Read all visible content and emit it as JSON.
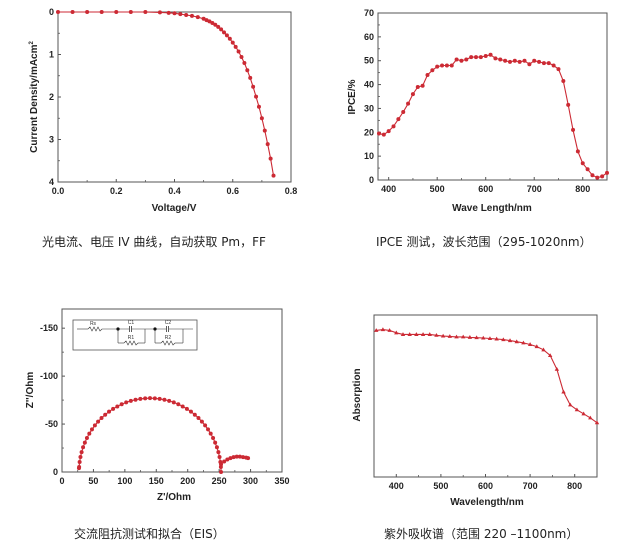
{
  "colors": {
    "series": "#cc2a34",
    "axis": "#555555",
    "text": "#222222"
  },
  "captions": [
    "光电流、电压 IV 曲线，自动获取 Pm，FF",
    "IPCE 测试，波长范围（295-1020nm）",
    "交流阻抗测试和拟合（EIS）",
    "紫外吸收谱（范围 220 –1100nm）"
  ],
  "chart_data": [
    {
      "type": "line",
      "id": "iv",
      "xlabel": "Voltage/V",
      "ylabel": "Current Density/mAcm",
      "ylabel_sup": "2",
      "xlim": [
        0,
        0.8
      ],
      "ylim": [
        0,
        4
      ],
      "y_inverted": true,
      "xticks": [
        "0.0",
        "0.2",
        "0.4",
        "0.6",
        "0.8"
      ],
      "xtick_values": [
        0,
        0.2,
        0.4,
        0.6,
        0.8
      ],
      "yticks": [
        "0",
        "1",
        "2",
        "3",
        "4"
      ],
      "ytick_values": [
        0,
        1,
        2,
        3,
        4
      ],
      "x": [
        0.0,
        0.05,
        0.1,
        0.15,
        0.2,
        0.25,
        0.3,
        0.35,
        0.38,
        0.4,
        0.42,
        0.44,
        0.46,
        0.48,
        0.5,
        0.51,
        0.52,
        0.53,
        0.54,
        0.55,
        0.56,
        0.57,
        0.58,
        0.59,
        0.6,
        0.61,
        0.62,
        0.63,
        0.64,
        0.65,
        0.66,
        0.67,
        0.68,
        0.69,
        0.7,
        0.71,
        0.72,
        0.73,
        0.74
      ],
      "y": [
        0.0,
        0.0,
        0.0,
        0.0,
        0.0,
        0.0,
        0.0,
        0.01,
        0.02,
        0.03,
        0.05,
        0.07,
        0.09,
        0.12,
        0.16,
        0.19,
        0.22,
        0.26,
        0.3,
        0.35,
        0.41,
        0.48,
        0.55,
        0.63,
        0.72,
        0.82,
        0.93,
        1.06,
        1.2,
        1.37,
        1.55,
        1.76,
        1.99,
        2.23,
        2.5,
        2.79,
        3.11,
        3.45,
        3.85
      ]
    },
    {
      "type": "line",
      "id": "ipce",
      "xlabel": "Wave Length/nm",
      "ylabel": "IPCE/%",
      "xlim": [
        378,
        850
      ],
      "ylim": [
        0,
        70
      ],
      "xticks": [
        "400",
        "500",
        "600",
        "700",
        "800"
      ],
      "xtick_values": [
        400,
        500,
        600,
        700,
        800
      ],
      "yticks": [
        "0",
        "10",
        "20",
        "30",
        "40",
        "50",
        "60",
        "70"
      ],
      "ytick_values": [
        0,
        10,
        20,
        30,
        40,
        50,
        60,
        70
      ],
      "x": [
        380,
        390,
        400,
        410,
        420,
        430,
        440,
        450,
        460,
        470,
        480,
        490,
        500,
        510,
        520,
        530,
        540,
        550,
        560,
        570,
        580,
        590,
        600,
        610,
        620,
        630,
        640,
        650,
        660,
        670,
        680,
        690,
        700,
        710,
        720,
        730,
        740,
        750,
        760,
        770,
        780,
        790,
        800,
        810,
        820,
        830,
        840,
        850
      ],
      "y": [
        19.5,
        19,
        20.5,
        22.5,
        25.5,
        28.5,
        32,
        36,
        39,
        39.5,
        44,
        46,
        47.5,
        48,
        48,
        48,
        50.5,
        50,
        50.5,
        51.5,
        51.5,
        51.5,
        52,
        52.5,
        51,
        50.5,
        50,
        49.5,
        50,
        49.5,
        50,
        48.5,
        50,
        49.5,
        49,
        49,
        48,
        46.5,
        41.5,
        31.5,
        21,
        12,
        7,
        4.5,
        2,
        1,
        1.5,
        3
      ]
    },
    {
      "type": "scatter",
      "id": "eis",
      "xlabel": "Z'/Ohm",
      "ylabel": "Z''/Ohm",
      "xlim": [
        0,
        350
      ],
      "ylim": [
        0,
        -170
      ],
      "xticks": [
        "0",
        "50",
        "100",
        "150",
        "200",
        "250",
        "300",
        "350"
      ],
      "xtick_values": [
        0,
        50,
        100,
        150,
        200,
        250,
        300,
        350
      ],
      "yticks": [
        "0",
        "-50",
        "-100",
        "-150"
      ],
      "ytick_values": [
        0,
        -50,
        -100,
        -150
      ],
      "inset": {
        "labels": [
          "Rs",
          "C1",
          "R1",
          "C2",
          "R2"
        ]
      },
      "semicircle": {
        "center": 140,
        "radius": 113,
        "peak": -77
      },
      "tail": {
        "x": [
          253,
          258,
          263,
          268,
          273,
          278,
          283,
          288,
          293,
          296
        ],
        "y": [
          -8,
          -11,
          -13,
          -14.5,
          -15.5,
          -16,
          -16,
          -15.5,
          -15,
          -14.5
        ]
      }
    },
    {
      "type": "line",
      "id": "absorption",
      "xlabel": "Wavelength/nm",
      "ylabel": "Absorption",
      "xlim": [
        350,
        850
      ],
      "ylim": [
        0,
        1
      ],
      "xticks": [
        "400",
        "500",
        "600",
        "700",
        "800"
      ],
      "xtick_values": [
        400,
        500,
        600,
        700,
        800
      ],
      "x": [
        355,
        370,
        385,
        400,
        415,
        430,
        445,
        460,
        475,
        490,
        505,
        520,
        535,
        550,
        565,
        580,
        595,
        610,
        625,
        640,
        655,
        670,
        685,
        700,
        715,
        730,
        745,
        760,
        775,
        790,
        805,
        820,
        835,
        850
      ],
      "y": [
        0.905,
        0.91,
        0.905,
        0.89,
        0.88,
        0.88,
        0.88,
        0.88,
        0.88,
        0.875,
        0.87,
        0.868,
        0.865,
        0.865,
        0.862,
        0.86,
        0.858,
        0.855,
        0.852,
        0.848,
        0.842,
        0.835,
        0.828,
        0.818,
        0.805,
        0.785,
        0.75,
        0.665,
        0.525,
        0.445,
        0.415,
        0.39,
        0.365,
        0.335
      ]
    }
  ]
}
